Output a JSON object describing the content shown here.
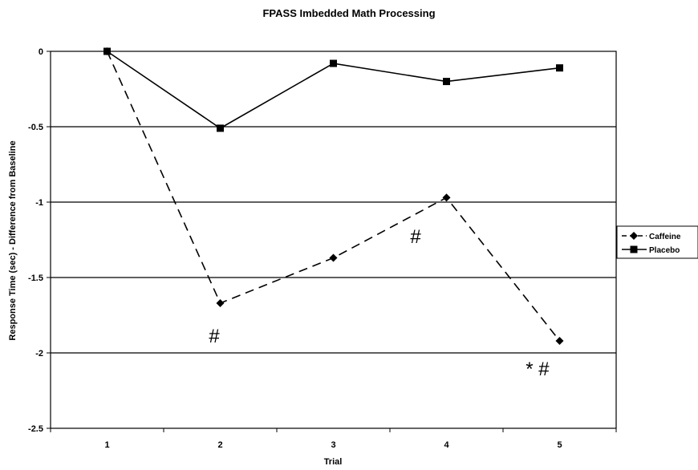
{
  "chart_data": {
    "type": "line",
    "title": "FPASS Imbedded Math Processing",
    "xlabel": "Trial",
    "ylabel": "Response Time (sec) - Difference from Baseline",
    "x": [
      1,
      2,
      3,
      4,
      5
    ],
    "x_tick_labels": [
      "1",
      "2",
      "3",
      "4",
      "5"
    ],
    "ylim": [
      -2.5,
      0
    ],
    "y_ticks": [
      0,
      -0.5,
      -1,
      -1.5,
      -2,
      -2.5
    ],
    "y_tick_labels": [
      "0",
      "-0.5",
      "-1",
      "-1.5",
      "-2",
      "-2.5"
    ],
    "grid": "horizontal",
    "legend": "right",
    "series": [
      {
        "name": "Caffeine",
        "values": [
          0,
          -1.67,
          -1.37,
          -0.97,
          -1.92
        ],
        "marker": "diamond",
        "line_style": "dashed",
        "color": "#000000"
      },
      {
        "name": "Placebo",
        "values": [
          0,
          -0.51,
          -0.08,
          -0.2,
          -0.11
        ],
        "marker": "square",
        "line_style": "solid",
        "color": "#000000"
      }
    ],
    "annotations": [
      {
        "text": "#",
        "x": 1.9,
        "y": -1.93
      },
      {
        "text": "#",
        "x": 3.68,
        "y": -1.27
      },
      {
        "text": "* #",
        "x": 4.7,
        "y": -2.15
      }
    ]
  }
}
